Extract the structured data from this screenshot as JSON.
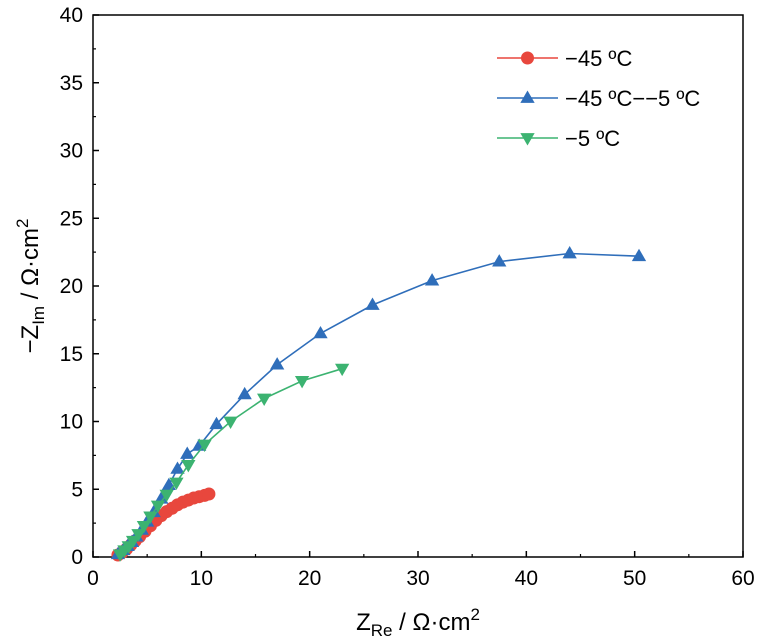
{
  "chart_data": {
    "type": "scatter",
    "title": "",
    "xlabel": {
      "main": "Z",
      "sub": "Re",
      "rest": " / Ω·cm",
      "sup": "2"
    },
    "ylabel": {
      "main": "−Z",
      "sub": "Im",
      "rest": " / Ω·cm",
      "sup": "2"
    },
    "xlim": [
      0,
      60
    ],
    "ylim": [
      0,
      40
    ],
    "xticks": [
      "0",
      "10",
      "20",
      "30",
      "40",
      "50",
      "60"
    ],
    "yticks": [
      "0",
      "5",
      "10",
      "15",
      "20",
      "25",
      "30",
      "35",
      "40"
    ],
    "grid": false,
    "legend_position": "top-right",
    "series": [
      {
        "name": "−45 ºC",
        "color": "#e8473d",
        "marker": "circle",
        "x": [
          2.3,
          2.7,
          3.1,
          3.5,
          3.9,
          4.3,
          4.8,
          5.3,
          5.8,
          6.3,
          6.8,
          7.3,
          7.8,
          8.3,
          8.8,
          9.3,
          9.8,
          10.3,
          10.7
        ],
        "y": [
          0.15,
          0.35,
          0.6,
          0.9,
          1.2,
          1.5,
          1.9,
          2.3,
          2.7,
          3.05,
          3.35,
          3.6,
          3.85,
          4.05,
          4.2,
          4.35,
          4.45,
          4.55,
          4.65
        ]
      },
      {
        "name": "−45 ºC−−5 ºC",
        "color": "#2f6eba",
        "marker": "triangle-up",
        "x": [
          2.3,
          2.8,
          3.2,
          3.6,
          4.0,
          4.5,
          5.0,
          5.6,
          6.3,
          7.0,
          7.8,
          8.7,
          9.8,
          11.4,
          14.0,
          17.0,
          21.0,
          25.8,
          31.3,
          37.5,
          44.0,
          50.4
        ],
        "y": [
          0.2,
          0.5,
          0.8,
          1.1,
          1.5,
          2.0,
          2.6,
          3.3,
          4.3,
          5.3,
          6.5,
          7.6,
          8.2,
          9.8,
          12.0,
          14.2,
          16.5,
          18.6,
          20.4,
          21.8,
          22.4,
          22.2
        ]
      },
      {
        "name": "−5 ºC",
        "color": "#3cb371",
        "marker": "triangle-down",
        "x": [
          2.5,
          2.9,
          3.3,
          3.7,
          4.2,
          4.7,
          5.3,
          6.0,
          6.8,
          7.7,
          8.8,
          10.3,
          12.7,
          15.8,
          19.3,
          23.0
        ],
        "y": [
          0.2,
          0.5,
          0.8,
          1.2,
          1.7,
          2.3,
          3.0,
          3.8,
          4.6,
          5.5,
          6.8,
          8.3,
          10.0,
          11.7,
          13.0,
          13.9
        ]
      }
    ]
  }
}
